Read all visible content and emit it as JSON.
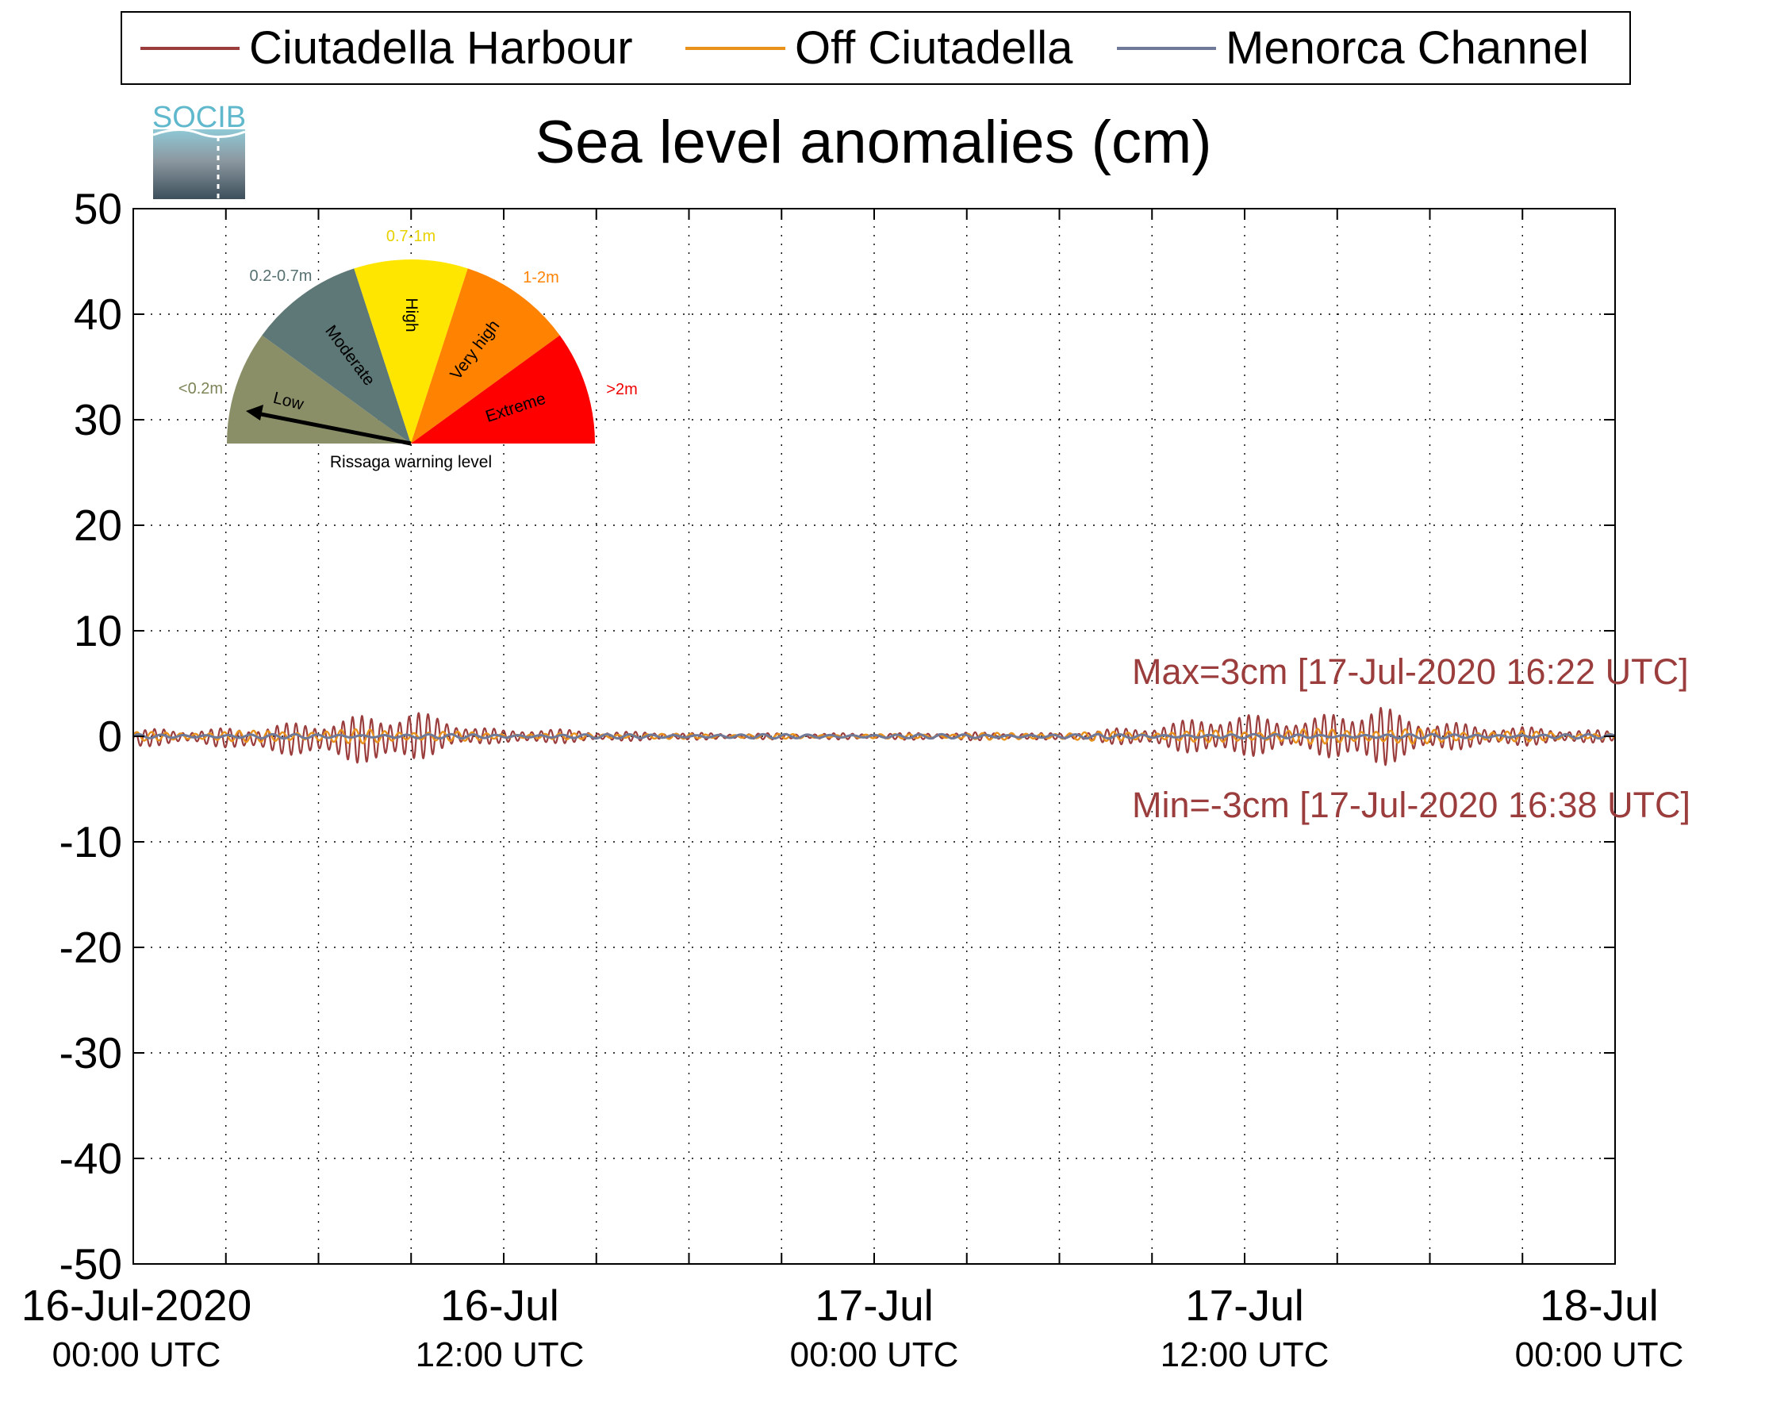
{
  "legend": {
    "items": [
      {
        "label": "Ciutadella Harbour",
        "color": "#9b3d3d"
      },
      {
        "label": "Off Ciutadella",
        "color": "#e8921c"
      },
      {
        "label": "Menorca Channel",
        "color": "#6f7a98"
      }
    ]
  },
  "logo": {
    "text": "SOCIB"
  },
  "gauge": {
    "caption": "Rissaga warning level",
    "needle_level": "Low",
    "sectors": [
      {
        "name": "Low",
        "range": "<0.2m",
        "color": "#8a8f67",
        "range_color": "#7d8457"
      },
      {
        "name": "Moderate",
        "range": "0.2-0.7m",
        "color": "#5e7777",
        "range_color": "#577070"
      },
      {
        "name": "High",
        "range": "0.7-1m",
        "color": "#ffe600",
        "range_color": "#e8d100"
      },
      {
        "name": "Very high",
        "range": "1-2m",
        "color": "#ff8200",
        "range_color": "#ff8200"
      },
      {
        "name": "Extreme",
        "range": ">2m",
        "color": "#ff0000",
        "range_color": "#ee0000"
      }
    ]
  },
  "chart_data": {
    "type": "line",
    "title": "Sea level anomalies (cm)",
    "xlim": [
      "2020-07-16 00:00",
      "2020-07-18 00:00"
    ],
    "ylim": [
      -50,
      50
    ],
    "y_ticks": [
      50,
      40,
      30,
      20,
      10,
      0,
      -10,
      -20,
      -30,
      -40,
      -50
    ],
    "y_tick_labels": [
      "50",
      "40",
      "30",
      "20",
      "10",
      "0",
      "-10",
      "-20",
      "-30",
      "-40",
      "-50"
    ],
    "x_ticks": [
      {
        "at": "2020-07-16 00:00",
        "line1": "16-Jul-2020",
        "line2": "00:00 UTC"
      },
      {
        "at": "2020-07-16 12:00",
        "line1": "16-Jul",
        "line2": "12:00 UTC"
      },
      {
        "at": "2020-07-17 00:00",
        "line1": "17-Jul",
        "line2": "00:00 UTC"
      },
      {
        "at": "2020-07-17 12:00",
        "line1": "17-Jul",
        "line2": "12:00 UTC"
      },
      {
        "at": "2020-07-18 00:00",
        "line1": "18-Jul",
        "line2": "00:00 UTC"
      }
    ],
    "grid": true,
    "legend_position": "top",
    "series": [
      {
        "name": "Ciutadella Harbour",
        "color": "#9b3d3d",
        "envelope": {
          "x": [
            "2020-07-16 00:00",
            "2020-07-16 01:00",
            "2020-07-16 02:00",
            "2020-07-16 04:00",
            "2020-07-16 06:00",
            "2020-07-16 08:00",
            "2020-07-16 09:00",
            "2020-07-16 10:00",
            "2020-07-16 11:00",
            "2020-07-16 12:00",
            "2020-07-16 13:00",
            "2020-07-16 15:00",
            "2020-07-16 17:00",
            "2020-07-16 19:00",
            "2020-07-16 21:00",
            "2020-07-17 00:00",
            "2020-07-17 03:00",
            "2020-07-17 06:00",
            "2020-07-17 08:00",
            "2020-07-17 09:00",
            "2020-07-17 10:00",
            "2020-07-17 11:00",
            "2020-07-17 13:00",
            "2020-07-17 14:00",
            "2020-07-17 15:00",
            "2020-07-17 16:22",
            "2020-07-17 17:00",
            "2020-07-17 18:00",
            "2020-07-17 20:00",
            "2020-07-17 22:00",
            "2020-07-18 00:00"
          ],
          "upper": [
            0.5,
            0.8,
            0.6,
            1.0,
            1.5,
            2.2,
            2.5,
            1.8,
            1.0,
            0.6,
            0.8,
            0.5,
            0.4,
            0.3,
            0.3,
            0.3,
            0.4,
            0.3,
            0.8,
            1.0,
            1.5,
            2.1,
            2.0,
            1.5,
            2.5,
            3.0,
            2.2,
            1.5,
            1.0,
            0.8,
            0.5
          ],
          "lower": [
            -1.0,
            -0.9,
            -0.7,
            -1.5,
            -2.0,
            -2.8,
            -2.5,
            -1.5,
            -0.9,
            -0.6,
            -0.8,
            -0.5,
            -0.4,
            -0.3,
            -0.3,
            -0.3,
            -0.4,
            -0.3,
            -0.8,
            -1.0,
            -1.5,
            -2.0,
            -1.8,
            -1.2,
            -2.5,
            -3.0,
            -2.3,
            -1.5,
            -1.0,
            -0.8,
            -0.5
          ]
        }
      },
      {
        "name": "Off Ciutadella",
        "color": "#e8921c",
        "envelope": {
          "x": [
            "2020-07-16 00:00",
            "2020-07-16 08:00",
            "2020-07-16 12:00",
            "2020-07-17 00:00",
            "2020-07-17 12:00",
            "2020-07-17 16:00",
            "2020-07-18 00:00"
          ],
          "upper": [
            0.4,
            0.7,
            0.3,
            0.2,
            0.6,
            0.8,
            0.3
          ],
          "lower": [
            -0.4,
            -0.7,
            -0.3,
            -0.2,
            -0.6,
            -0.8,
            -0.3
          ]
        }
      },
      {
        "name": "Menorca Channel",
        "color": "#6f7a98",
        "envelope": {
          "x": [
            "2020-07-16 00:00",
            "2020-07-18 00:00"
          ],
          "upper": [
            0.2,
            0.2
          ],
          "lower": [
            -0.2,
            -0.2
          ]
        }
      }
    ],
    "annotations": [
      {
        "text": "Max=3cm [17-Jul-2020 16:22 UTC]",
        "color": "#9b3d3d",
        "at_value": 3
      },
      {
        "text": "Min=-3cm [17-Jul-2020 16:38 UTC]",
        "color": "#9b3d3d",
        "at_value": -3
      }
    ]
  }
}
